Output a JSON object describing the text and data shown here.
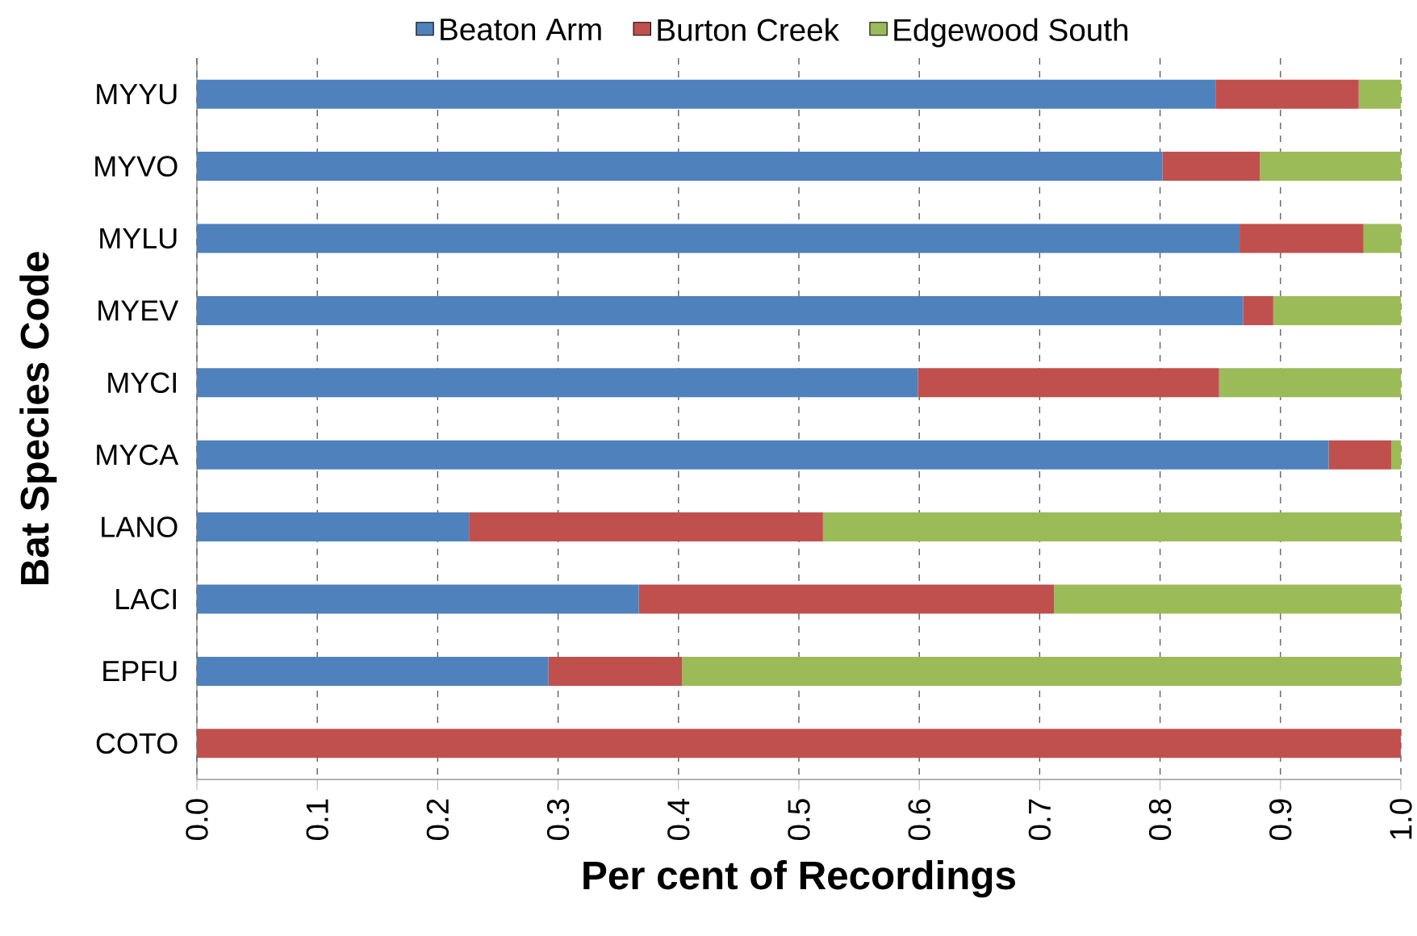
{
  "chart_data": {
    "type": "bar",
    "orientation": "horizontal",
    "stacked": true,
    "xlabel": "Per cent of Recordings",
    "ylabel": "Bat Species Code",
    "categories": [
      "MYYU",
      "MYVO",
      "MYLU",
      "MYEV",
      "MYCI",
      "MYCA",
      "LANO",
      "LACI",
      "EPFU",
      "COTO"
    ],
    "series": [
      {
        "name": "Beaton Arm",
        "color": "#4f81bd",
        "values": [
          0.846,
          0.802,
          0.866,
          0.869,
          0.599,
          0.94,
          0.226,
          0.367,
          0.292,
          0
        ]
      },
      {
        "name": "Burton Creek",
        "color": "#c0504d",
        "values": [
          0.119,
          0.081,
          0.103,
          0.025,
          0.25,
          0.052,
          0.294,
          0.345,
          0.111,
          1.0
        ]
      },
      {
        "name": "Edgewood South",
        "color": "#9bbb59",
        "values": [
          0.035,
          0.117,
          0.031,
          0.106,
          0.151,
          0.008,
          0.48,
          0.288,
          0.597,
          0
        ]
      }
    ],
    "xlim": [
      0,
      1
    ],
    "xticks": [
      {
        "value": 0,
        "label": "0.0"
      },
      0.1,
      0.2,
      0.3,
      0.4,
      0.5,
      0.6,
      0.7,
      0.8,
      0.9,
      {
        "value": 1,
        "label": "1.0"
      }
    ],
    "grid": "x",
    "legend": "top"
  }
}
